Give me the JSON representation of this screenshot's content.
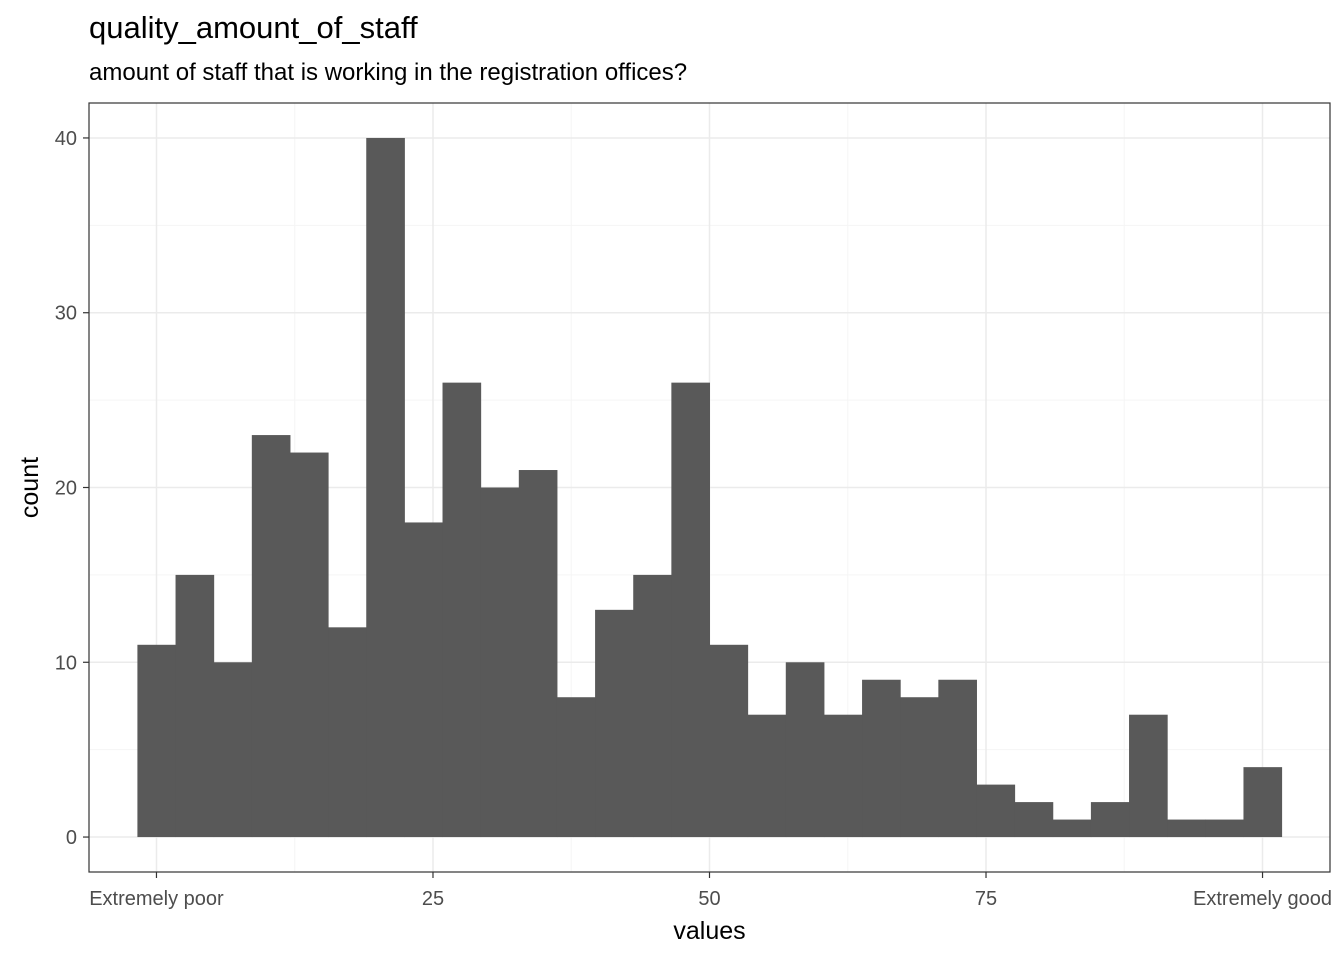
{
  "chart_data": {
    "type": "bar",
    "title": "quality_amount_of_staff",
    "subtitle": "amount of staff that is working in the registration offices?",
    "xlabel": "values",
    "ylabel": "count",
    "xlim": [
      -6.1,
      106.1
    ],
    "ylim": [
      -2,
      42
    ],
    "grid": true,
    "bin_width": 3.448,
    "bins": [
      {
        "x": 0.0,
        "count": 11
      },
      {
        "x": 3.448,
        "count": 15
      },
      {
        "x": 6.897,
        "count": 10
      },
      {
        "x": 10.345,
        "count": 23
      },
      {
        "x": 13.793,
        "count": 22
      },
      {
        "x": 17.241,
        "count": 12
      },
      {
        "x": 20.69,
        "count": 40
      },
      {
        "x": 24.138,
        "count": 18
      },
      {
        "x": 27.586,
        "count": 26
      },
      {
        "x": 31.034,
        "count": 20
      },
      {
        "x": 34.483,
        "count": 21
      },
      {
        "x": 37.931,
        "count": 8
      },
      {
        "x": 41.379,
        "count": 13
      },
      {
        "x": 44.828,
        "count": 15
      },
      {
        "x": 48.276,
        "count": 26
      },
      {
        "x": 51.724,
        "count": 11
      },
      {
        "x": 55.172,
        "count": 7
      },
      {
        "x": 58.621,
        "count": 10
      },
      {
        "x": 62.069,
        "count": 7
      },
      {
        "x": 65.517,
        "count": 9
      },
      {
        "x": 68.966,
        "count": 8
      },
      {
        "x": 72.414,
        "count": 9
      },
      {
        "x": 75.862,
        "count": 3
      },
      {
        "x": 79.31,
        "count": 2
      },
      {
        "x": 82.759,
        "count": 1
      },
      {
        "x": 86.207,
        "count": 2
      },
      {
        "x": 89.655,
        "count": 7
      },
      {
        "x": 93.103,
        "count": 1
      },
      {
        "x": 96.552,
        "count": 1
      },
      {
        "x": 100.0,
        "count": 4
      }
    ],
    "x_ticks": [
      {
        "value": 0,
        "label": "Extremely poor"
      },
      {
        "value": 25,
        "label": "25"
      },
      {
        "value": 50,
        "label": "50"
      },
      {
        "value": 75,
        "label": "75"
      },
      {
        "value": 100,
        "label": "Extremely good"
      }
    ],
    "y_ticks": [
      {
        "value": 0,
        "label": "0"
      },
      {
        "value": 10,
        "label": "10"
      },
      {
        "value": 20,
        "label": "20"
      },
      {
        "value": 30,
        "label": "30"
      },
      {
        "value": 40,
        "label": "40"
      }
    ],
    "colors": {
      "bar": "#595959",
      "grid_major": "#ebebeb",
      "grid_minor": "#f5f5f5",
      "panel_border": "#333333",
      "tick_text": "#4d4d4d"
    }
  }
}
